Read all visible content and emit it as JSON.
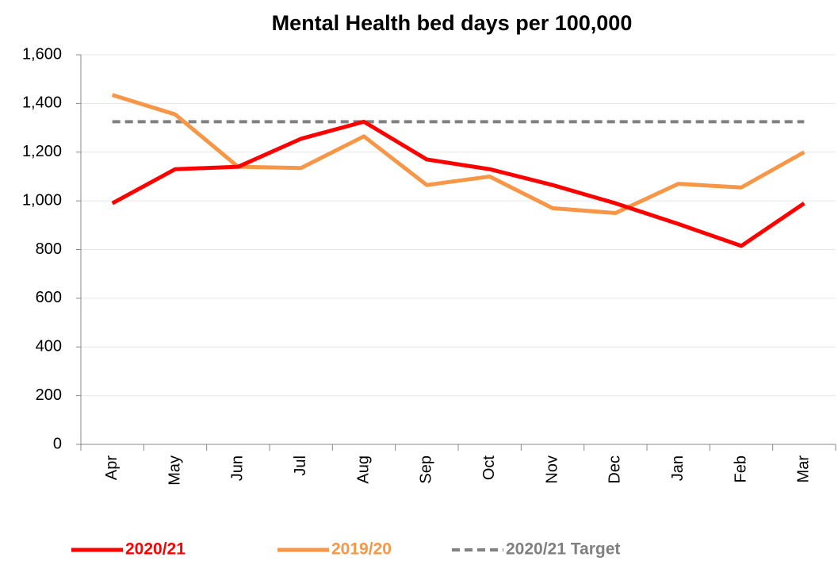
{
  "chart_data": {
    "type": "line",
    "title": "Mental Health bed days per 100,000",
    "categories": [
      "Apr",
      "May",
      "Jun",
      "Jul",
      "Aug",
      "Sep",
      "Oct",
      "Nov",
      "Dec",
      "Jan",
      "Feb",
      "Mar"
    ],
    "series": [
      {
        "name": "2020/21",
        "color": "#ff0000",
        "style": "solid",
        "values": [
          990,
          1130,
          1140,
          1255,
          1325,
          1170,
          1130,
          1065,
          990,
          905,
          815,
          990
        ]
      },
      {
        "name": "2019/20",
        "color": "#f79646",
        "style": "solid",
        "values": [
          1435,
          1355,
          1140,
          1135,
          1265,
          1065,
          1100,
          970,
          950,
          1070,
          1055,
          1200
        ]
      },
      {
        "name": "2020/21 Target",
        "color": "#808080",
        "style": "dashed",
        "values": [
          1325,
          1325,
          1325,
          1325,
          1325,
          1325,
          1325,
          1325,
          1325,
          1325,
          1325,
          1325
        ]
      }
    ],
    "ylim": [
      0,
      1600
    ],
    "yticks": [
      0,
      200,
      400,
      600,
      800,
      {
        "value": 1000,
        "label": "1,000"
      },
      {
        "value": 1200,
        "label": "1,200"
      },
      {
        "value": 1400,
        "label": "1,400"
      },
      {
        "value": 1600,
        "label": "1,600"
      }
    ],
    "grid": true,
    "legend": "bottom"
  }
}
